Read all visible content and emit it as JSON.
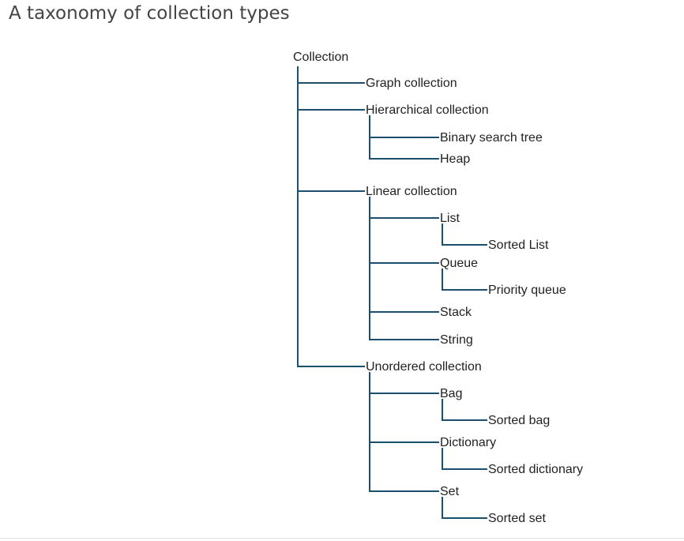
{
  "page": {
    "title": "A taxonomy of collection types"
  },
  "colors": {
    "line": "#1c4f6e",
    "text": "#222222",
    "title": "#444444"
  },
  "tree": {
    "root": "Collection",
    "children": [
      {
        "label": "Graph collection"
      },
      {
        "label": "Hierarchical collection",
        "children": [
          {
            "label": "Binary search tree"
          },
          {
            "label": "Heap"
          }
        ]
      },
      {
        "label": "Linear collection",
        "children": [
          {
            "label": "List",
            "children": [
              {
                "label": "Sorted List"
              }
            ]
          },
          {
            "label": "Queue",
            "children": [
              {
                "label": "Priority queue"
              }
            ]
          },
          {
            "label": "Stack"
          },
          {
            "label": "String"
          }
        ]
      },
      {
        "label": "Unordered collection",
        "children": [
          {
            "label": "Bag",
            "children": [
              {
                "label": "Sorted bag"
              }
            ]
          },
          {
            "label": "Dictionary",
            "children": [
              {
                "label": "Sorted dictionary"
              }
            ]
          },
          {
            "label": "Set",
            "children": [
              {
                "label": "Sorted set"
              }
            ]
          }
        ]
      }
    ]
  }
}
